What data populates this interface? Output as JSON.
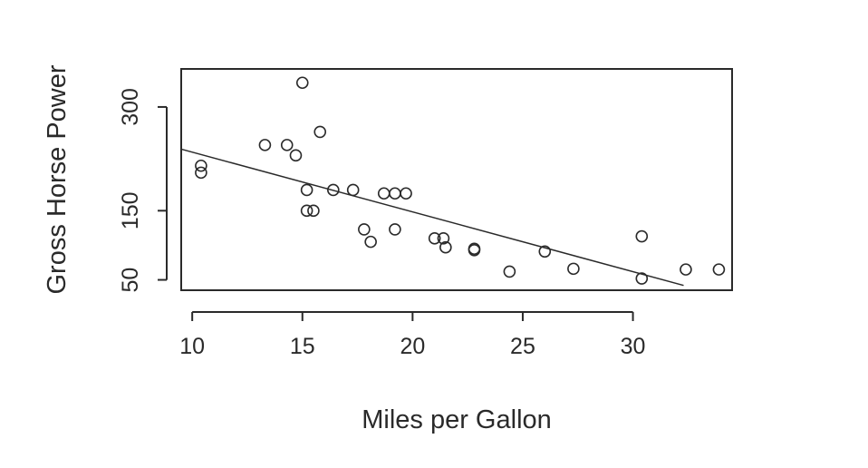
{
  "chart_data": {
    "type": "scatter",
    "title": "",
    "xlabel": "Miles per Gallon",
    "ylabel": "Gross Horse Power",
    "xlim": [
      9.5,
      34.5
    ],
    "ylim": [
      35,
      355
    ],
    "x_ticks": [
      10,
      15,
      20,
      25,
      30
    ],
    "y_ticks": [
      50,
      150,
      300
    ],
    "grid": false,
    "legend": "none",
    "series": [
      {
        "points": [
          [
            10.4,
            205
          ],
          [
            10.4,
            215
          ],
          [
            13.3,
            245
          ],
          [
            14.3,
            245
          ],
          [
            14.7,
            230
          ],
          [
            15.0,
            335
          ],
          [
            15.2,
            180
          ],
          [
            15.2,
            150
          ],
          [
            15.5,
            150
          ],
          [
            15.8,
            264
          ],
          [
            16.4,
            180
          ],
          [
            17.3,
            180
          ],
          [
            17.8,
            123
          ],
          [
            18.1,
            105
          ],
          [
            18.7,
            175
          ],
          [
            19.2,
            175
          ],
          [
            19.2,
            123
          ],
          [
            19.7,
            175
          ],
          [
            21.0,
            110
          ],
          [
            21.4,
            110
          ],
          [
            21.5,
            97
          ],
          [
            22.8,
            93
          ],
          [
            22.8,
            95
          ],
          [
            24.4,
            62
          ],
          [
            26.0,
            91
          ],
          [
            27.3,
            66
          ],
          [
            30.4,
            113
          ],
          [
            30.4,
            52
          ],
          [
            32.4,
            65
          ],
          [
            33.9,
            65
          ]
        ]
      }
    ],
    "fit_line": {
      "x": [
        9.5,
        32.3
      ],
      "y": [
        239,
        42
      ]
    }
  },
  "colors": {
    "ink": "#2a2a2a",
    "background": "#ffffff"
  }
}
